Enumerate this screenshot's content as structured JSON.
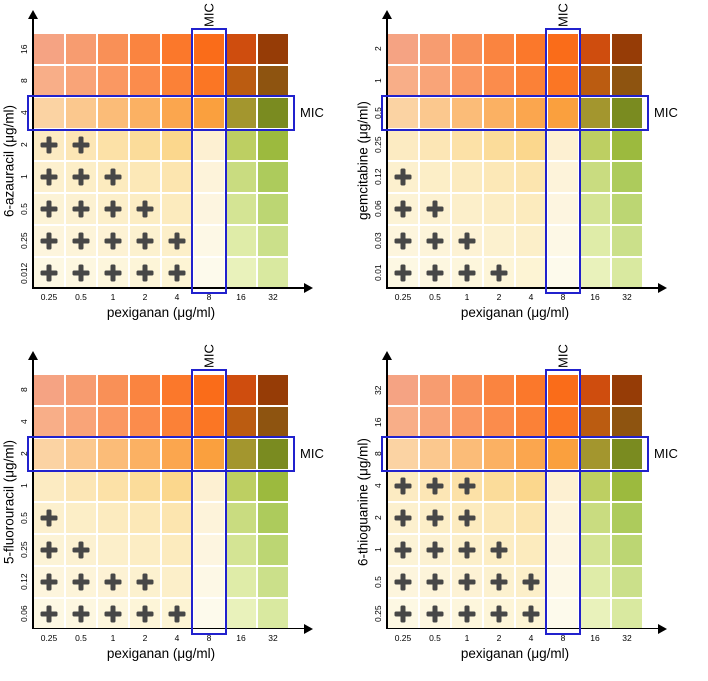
{
  "figure": {
    "background": "#ffffff",
    "mic_label": "MIC",
    "colors": {
      "mic_box": "#2121cd",
      "plus": "#474747",
      "axis": "#000000"
    },
    "cell_colors": [
      [
        "#f5a383",
        "#f79c70",
        "#f99057",
        "#fa8440",
        "#fb782b",
        "#fa6c19",
        "#cf4d0e",
        "#963c06"
      ],
      [
        "#f8ae88",
        "#f9a478",
        "#fa9862",
        "#fb8c4c",
        "#fb8137",
        "#fb7624",
        "#bb5c11",
        "#8e5410"
      ],
      [
        "#fbd3a3",
        "#fbc88e",
        "#fbbc78",
        "#fbb163",
        "#fba64e",
        "#faa03e",
        "#a3962e",
        "#7a8b20"
      ],
      [
        "#fcebc2",
        "#fce6b5",
        "#fce1a7",
        "#fbdc9a",
        "#fbd78d",
        "#fdf0d2",
        "#bdcf62",
        "#9cba3e"
      ],
      [
        "#fcf0ce",
        "#fceec7",
        "#fcebbf",
        "#fce8b7",
        "#fce5af",
        "#fdf3da",
        "#c9dc80",
        "#adcb5c"
      ],
      [
        "#fcf3d6",
        "#fcf1d1",
        "#fcefca",
        "#fcedc4",
        "#fcebbe",
        "#fdf5e0",
        "#d4e494",
        "#bcd673"
      ],
      [
        "#fdf5dd",
        "#fdf4d9",
        "#fdf2d4",
        "#fcf1cf",
        "#fcefc9",
        "#fdf8e6",
        "#dfeca8",
        "#cbe08a"
      ],
      [
        "#fdf8e3",
        "#fdf7e0",
        "#fdf6dc",
        "#fdf5d8",
        "#fdf4d4",
        "#fdfaec",
        "#e9f2bb",
        "#d9e9a0"
      ]
    ]
  },
  "chart_data": [
    {
      "type": "heatmap",
      "name": "6-azauracil",
      "xlabel": "pexiganan (μg/ml)",
      "ylabel": "6-azauracil (μg/ml)",
      "x_ticks": [
        "0.25",
        "0.5",
        "1",
        "2",
        "4",
        "8",
        "16",
        "32"
      ],
      "y_ticks_top_to_bottom": [
        "16",
        "8",
        "4",
        "2",
        "1",
        "0.5",
        "0.25",
        "0.012"
      ],
      "mic_pexiganan": "8",
      "mic_drug": "4",
      "synergy_cells_pexiganan_drug": [
        [
          "0.25",
          "2"
        ],
        [
          "0.5",
          "2"
        ],
        [
          "0.25",
          "1"
        ],
        [
          "0.5",
          "1"
        ],
        [
          "1",
          "1"
        ],
        [
          "0.25",
          "0.5"
        ],
        [
          "0.5",
          "0.5"
        ],
        [
          "1",
          "0.5"
        ],
        [
          "2",
          "0.5"
        ],
        [
          "0.25",
          "0.25"
        ],
        [
          "0.5",
          "0.25"
        ],
        [
          "1",
          "0.25"
        ],
        [
          "2",
          "0.25"
        ],
        [
          "4",
          "0.25"
        ],
        [
          "0.25",
          "0.012"
        ],
        [
          "0.5",
          "0.012"
        ],
        [
          "1",
          "0.012"
        ],
        [
          "2",
          "0.012"
        ],
        [
          "4",
          "0.012"
        ]
      ]
    },
    {
      "type": "heatmap",
      "name": "gemcitabine",
      "xlabel": "pexiganan (μg/ml)",
      "ylabel": "gemcitabine (μg/ml)",
      "x_ticks": [
        "0.25",
        "0.5",
        "1",
        "2",
        "4",
        "8",
        "16",
        "32"
      ],
      "y_ticks_top_to_bottom": [
        "2",
        "1",
        "0.5",
        "0.25",
        "0.12",
        "0.06",
        "0.03",
        "0.01"
      ],
      "mic_pexiganan": "8",
      "mic_drug": "0.5",
      "synergy_cells_pexiganan_drug": [
        [
          "0.25",
          "0.12"
        ],
        [
          "0.25",
          "0.06"
        ],
        [
          "0.5",
          "0.06"
        ],
        [
          "0.25",
          "0.03"
        ],
        [
          "0.5",
          "0.03"
        ],
        [
          "1",
          "0.03"
        ],
        [
          "0.25",
          "0.01"
        ],
        [
          "0.5",
          "0.01"
        ],
        [
          "1",
          "0.01"
        ],
        [
          "2",
          "0.01"
        ]
      ]
    },
    {
      "type": "heatmap",
      "name": "5-fluorouracil",
      "xlabel": "pexiganan (μg/ml)",
      "ylabel": "5-fluorouracil (μg/ml)",
      "x_ticks": [
        "0.25",
        "0.5",
        "1",
        "2",
        "4",
        "8",
        "16",
        "32"
      ],
      "y_ticks_top_to_bottom": [
        "8",
        "4",
        "2",
        "1",
        "0.5",
        "0.25",
        "0.12",
        "0.06"
      ],
      "mic_pexiganan": "8",
      "mic_drug": "2",
      "synergy_cells_pexiganan_drug": [
        [
          "0.25",
          "0.5"
        ],
        [
          "0.25",
          "0.25"
        ],
        [
          "0.5",
          "0.25"
        ],
        [
          "0.25",
          "0.12"
        ],
        [
          "0.5",
          "0.12"
        ],
        [
          "1",
          "0.12"
        ],
        [
          "2",
          "0.12"
        ],
        [
          "0.25",
          "0.06"
        ],
        [
          "0.5",
          "0.06"
        ],
        [
          "1",
          "0.06"
        ],
        [
          "2",
          "0.06"
        ],
        [
          "4",
          "0.06"
        ]
      ]
    },
    {
      "type": "heatmap",
      "name": "6-thioguanine",
      "xlabel": "pexiganan (μg/ml)",
      "ylabel": "6-thioguanine (μg/ml)",
      "x_ticks": [
        "0.25",
        "0.5",
        "1",
        "2",
        "4",
        "8",
        "16",
        "32"
      ],
      "y_ticks_top_to_bottom": [
        "32",
        "16",
        "8",
        "4",
        "2",
        "1",
        "0.5",
        "0.25"
      ],
      "mic_pexiganan": "8",
      "mic_drug": "8",
      "synergy_cells_pexiganan_drug": [
        [
          "0.25",
          "4"
        ],
        [
          "0.5",
          "4"
        ],
        [
          "1",
          "4"
        ],
        [
          "0.25",
          "2"
        ],
        [
          "0.5",
          "2"
        ],
        [
          "1",
          "2"
        ],
        [
          "0.25",
          "1"
        ],
        [
          "0.5",
          "1"
        ],
        [
          "1",
          "1"
        ],
        [
          "2",
          "1"
        ],
        [
          "0.25",
          "0.5"
        ],
        [
          "0.5",
          "0.5"
        ],
        [
          "1",
          "0.5"
        ],
        [
          "2",
          "0.5"
        ],
        [
          "4",
          "0.5"
        ],
        [
          "0.25",
          "0.25"
        ],
        [
          "0.5",
          "0.25"
        ],
        [
          "1",
          "0.25"
        ],
        [
          "2",
          "0.25"
        ],
        [
          "4",
          "0.25"
        ]
      ]
    }
  ]
}
